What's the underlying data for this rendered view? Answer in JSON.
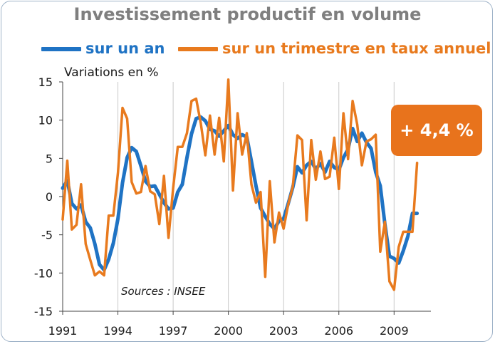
{
  "chart_data": {
    "type": "line",
    "title": "Investissement productif en volume",
    "ylabel": "Variations en %",
    "ylim": [
      -15,
      15
    ],
    "yticks": [
      15,
      10,
      5,
      0,
      -5,
      -10,
      -15
    ],
    "xlim": [
      1991,
      2011
    ],
    "xticks": [
      1991,
      1994,
      1997,
      2000,
      2003,
      2006,
      2009
    ],
    "grid": "vertical",
    "legend": "top",
    "annotation": "+ 4,4 %",
    "source": "Sources : INSEE",
    "series": [
      {
        "name": "sur un an",
        "color": "#1f73c4",
        "x": [
          1991.0,
          1991.25,
          1991.5,
          1991.75,
          1992.0,
          1992.25,
          1992.5,
          1992.75,
          1993.0,
          1993.25,
          1993.5,
          1993.75,
          1994.0,
          1994.25,
          1994.5,
          1994.75,
          1995.0,
          1995.25,
          1995.5,
          1995.75,
          1996.0,
          1996.25,
          1996.5,
          1996.75,
          1997.0,
          1997.25,
          1997.5,
          1997.75,
          1998.0,
          1998.25,
          1998.5,
          1998.75,
          1999.0,
          1999.25,
          1999.5,
          1999.75,
          2000.0,
          2000.25,
          2000.5,
          2000.75,
          2001.0,
          2001.25,
          2001.5,
          2001.75,
          2002.0,
          2002.25,
          2002.5,
          2002.75,
          2003.0,
          2003.25,
          2003.5,
          2003.75,
          2004.0,
          2004.25,
          2004.5,
          2004.75,
          2005.0,
          2005.25,
          2005.5,
          2005.75,
          2006.0,
          2006.25,
          2006.5,
          2006.75,
          2007.0,
          2007.25,
          2007.5,
          2007.75,
          2008.0,
          2008.25,
          2008.5,
          2008.75,
          2009.0,
          2009.25,
          2009.5,
          2009.75,
          2010.0,
          2010.25
        ],
        "values": [
          1.1,
          2.1,
          -0.9,
          -1.6,
          -1.1,
          -3.3,
          -4.1,
          -6.2,
          -8.9,
          -9.6,
          -8.2,
          -6.1,
          -2.9,
          1.8,
          5.1,
          6.4,
          5.9,
          4.0,
          2.0,
          1.3,
          1.4,
          0.3,
          -0.8,
          -1.6,
          -1.5,
          0.6,
          1.6,
          5.1,
          8.2,
          10.2,
          10.4,
          9.9,
          8.8,
          8.6,
          7.9,
          8.6,
          9.3,
          8.1,
          7.6,
          8.1,
          7.8,
          4.6,
          1.4,
          -1.5,
          -2.6,
          -3.6,
          -4.2,
          -3.2,
          -2.9,
          -0.9,
          1.2,
          3.9,
          3.1,
          4.1,
          4.6,
          3.6,
          4.3,
          3.2,
          4.6,
          3.8,
          3.5,
          5.1,
          6.2,
          8.9,
          7.2,
          8.3,
          7.1,
          6.3,
          3.2,
          1.4,
          -3.6,
          -7.8,
          -8.1,
          -8.7,
          -7.1,
          -5.2,
          -2.2,
          -2.2
        ]
      },
      {
        "name": "sur un trimestre en taux annuel",
        "color": "#e87a1e",
        "x": [
          1991.0,
          1991.25,
          1991.5,
          1991.75,
          1992.0,
          1992.25,
          1992.5,
          1992.75,
          1993.0,
          1993.25,
          1993.5,
          1993.75,
          1994.0,
          1994.25,
          1994.5,
          1994.75,
          1995.0,
          1995.25,
          1995.5,
          1995.75,
          1996.0,
          1996.25,
          1996.5,
          1996.75,
          1997.0,
          1997.25,
          1997.5,
          1997.75,
          1998.0,
          1998.25,
          1998.5,
          1998.75,
          1999.0,
          1999.25,
          1999.5,
          1999.75,
          2000.0,
          2000.25,
          2000.5,
          2000.75,
          2001.0,
          2001.25,
          2001.5,
          2001.75,
          2002.0,
          2002.25,
          2002.5,
          2002.75,
          2003.0,
          2003.25,
          2003.5,
          2003.75,
          2004.0,
          2004.25,
          2004.5,
          2004.75,
          2005.0,
          2005.25,
          2005.5,
          2005.75,
          2006.0,
          2006.25,
          2006.5,
          2006.75,
          2007.0,
          2007.25,
          2007.5,
          2007.75,
          2008.0,
          2008.25,
          2008.5,
          2008.75,
          2009.0,
          2009.25,
          2009.5,
          2009.75,
          2010.0,
          2010.25
        ],
        "values": [
          -3.0,
          4.7,
          -4.3,
          -3.7,
          1.6,
          -6.2,
          -8.3,
          -10.3,
          -9.8,
          -10.3,
          -2.5,
          -2.5,
          3.1,
          11.6,
          10.2,
          1.9,
          0.4,
          0.6,
          4.0,
          0.7,
          0.3,
          -3.6,
          2.7,
          -5.4,
          1.1,
          6.5,
          6.5,
          8.3,
          12.5,
          12.8,
          9.6,
          5.4,
          10.6,
          5.5,
          10.3,
          4.6,
          15.3,
          0.8,
          10.9,
          5.5,
          8.3,
          1.6,
          -0.8,
          0.6,
          -10.5,
          2.0,
          -6.0,
          -2.1,
          -4.2,
          -1.0,
          1.3,
          8.0,
          7.4,
          -3.1,
          7.4,
          2.2,
          5.9,
          2.3,
          2.6,
          7.7,
          1.0,
          10.9,
          4.9,
          12.5,
          9.4,
          4.1,
          7.2,
          7.5,
          8.1,
          -7.2,
          -3.3,
          -11.1,
          -12.2,
          -6.6,
          -4.6,
          -4.6,
          -4.6,
          4.4
        ]
      }
    ]
  }
}
